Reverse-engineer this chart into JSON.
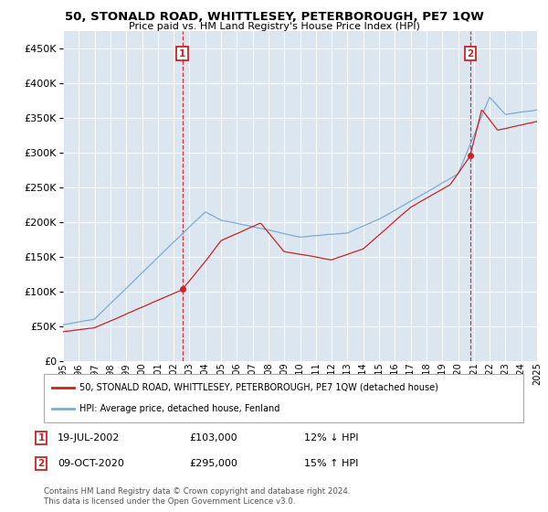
{
  "title": "50, STONALD ROAD, WHITTLESEY, PETERBOROUGH, PE7 1QW",
  "subtitle": "Price paid vs. HM Land Registry's House Price Index (HPI)",
  "legend_line1": "50, STONALD ROAD, WHITTLESEY, PETERBOROUGH, PE7 1QW (detached house)",
  "legend_line2": "HPI: Average price, detached house, Fenland",
  "transaction1_date": "19-JUL-2002",
  "transaction1_price": "£103,000",
  "transaction1_hpi": "12% ↓ HPI",
  "transaction2_date": "09-OCT-2020",
  "transaction2_price": "£295,000",
  "transaction2_hpi": "15% ↑ HPI",
  "footnote": "Contains HM Land Registry data © Crown copyright and database right 2024.\nThis data is licensed under the Open Government Licence v3.0.",
  "hpi_color": "#7aadd4",
  "price_color": "#cc2222",
  "marker_color": "#cc2222",
  "vline_color": "#cc2222",
  "bg_color": "#dce6f1",
  "grid_color": "#ffffff",
  "fig_bg": "#ffffff",
  "ylim": [
    0,
    475000
  ],
  "yticks": [
    0,
    50000,
    100000,
    150000,
    200000,
    250000,
    300000,
    350000,
    400000,
    450000
  ],
  "xstart": 1995,
  "xend": 2025,
  "transaction1_x": 2002.55,
  "transaction2_x": 2020.77
}
